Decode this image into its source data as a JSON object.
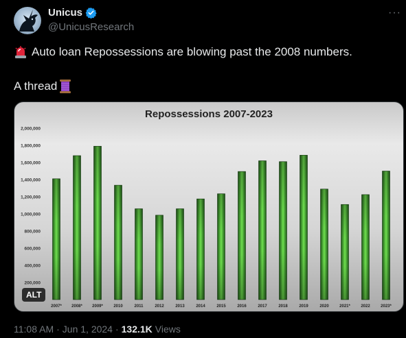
{
  "tweet": {
    "author_name": "Unicus",
    "handle": "@UnicusResearch",
    "more_label": "···",
    "text_line1": "Auto loan Repossessions are blowing past the 2008 numbers.",
    "text_line2": "A thread",
    "alt_label": "ALT",
    "time": "11:08 AM",
    "separator": "·",
    "date": "Jun 1, 2024",
    "views_count": "132.1K",
    "views_label": "Views",
    "icons": [
      "verified-badge-icon",
      "siren-emoji-icon",
      "thread-spool-emoji-icon",
      "more-options-icon"
    ],
    "colors": {
      "background": "#000000",
      "text": "#e7e9ea",
      "muted": "#71767b",
      "verified": "#1d9bf0",
      "bar": "#3fa834"
    }
  },
  "chart_data": {
    "type": "bar",
    "title": "Repossessions 2007-2023",
    "categories": [
      "2007*",
      "2008*",
      "2009*",
      "2010",
      "2011",
      "2012",
      "2013",
      "2014",
      "2015",
      "2016",
      "2017",
      "2018",
      "2019",
      "2020",
      "2021*",
      "2022",
      "2023*"
    ],
    "values": [
      1410000,
      1680000,
      1790000,
      1335000,
      1060000,
      985000,
      1060000,
      1175000,
      1235000,
      1495000,
      1620000,
      1610000,
      1685000,
      1290000,
      1110000,
      1225000,
      1500000
    ],
    "yticks": [
      "200,000",
      "400,000",
      "600,000",
      "800,000",
      "1,000,000",
      "1,200,000",
      "1,400,000",
      "1,600,000",
      "1,800,000",
      "2,000,000"
    ],
    "ylim": [
      0,
      2000000
    ],
    "grid": false,
    "legend": "none"
  }
}
